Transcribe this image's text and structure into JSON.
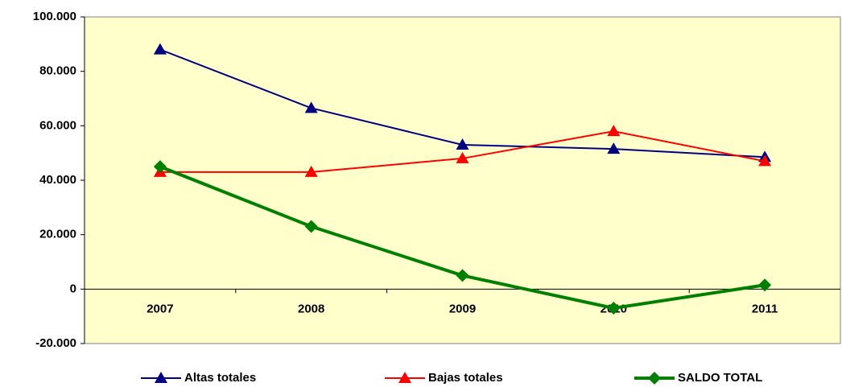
{
  "chart_data": {
    "type": "line",
    "categories": [
      "2007",
      "2008",
      "2009",
      "2010",
      "2011"
    ],
    "series": [
      {
        "name": "Altas totales",
        "color": "#000080",
        "marker": "triangle",
        "values": [
          88000,
          66500,
          53000,
          51500,
          48500
        ]
      },
      {
        "name": "Bajas totales",
        "color": "#ff0000",
        "marker": "triangle",
        "values": [
          43000,
          43000,
          48000,
          58000,
          47000
        ]
      },
      {
        "name": "SALDO TOTAL",
        "color": "#008000",
        "marker": "diamond",
        "values": [
          45000,
          23000,
          5000,
          -7000,
          1500
        ]
      }
    ],
    "ylim": [
      -20000,
      100000
    ],
    "yticks": [
      {
        "value": -20000,
        "label": "-20.000"
      },
      0,
      {
        "value": 20000,
        "label": "20.000"
      },
      {
        "value": 40000,
        "label": "40.000"
      },
      {
        "value": 60000,
        "label": "60.000"
      },
      {
        "value": 80000,
        "label": "80.000"
      },
      {
        "value": 100000,
        "label": "100.000"
      }
    ],
    "grid": false,
    "legend": "bottom",
    "background": "#ffffcc"
  }
}
